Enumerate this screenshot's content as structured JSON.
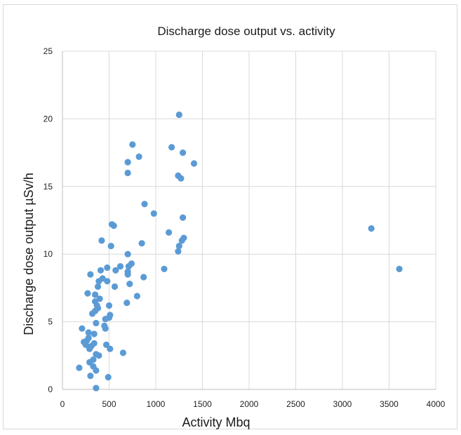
{
  "chart_data": {
    "type": "scatter",
    "title": "Discharge dose output vs. activity",
    "xlabel": "Activity Mbq",
    "ylabel": "Discharge dose output µSv/h",
    "xlim": [
      0,
      4000
    ],
    "ylim": [
      0,
      25
    ],
    "x_ticks": [
      "0",
      "500",
      "1000",
      "1500",
      "2000",
      "2500",
      "3000",
      "3500",
      "4000"
    ],
    "y_ticks": [
      "0",
      "5",
      "10",
      "15",
      "20",
      "25"
    ],
    "grid": true,
    "marker_color": "#5b9bd5",
    "series": [
      {
        "points": [
          [
            180,
            1.6
          ],
          [
            210,
            4.5
          ],
          [
            230,
            3.5
          ],
          [
            250,
            3.3
          ],
          [
            260,
            3.6
          ],
          [
            270,
            7.1
          ],
          [
            280,
            4.2
          ],
          [
            280,
            3.8
          ],
          [
            290,
            3.0
          ],
          [
            290,
            2.0
          ],
          [
            300,
            1.0
          ],
          [
            300,
            8.5
          ],
          [
            310,
            3.2
          ],
          [
            320,
            5.6
          ],
          [
            330,
            1.7
          ],
          [
            330,
            2.2
          ],
          [
            340,
            3.4
          ],
          [
            340,
            4.1
          ],
          [
            350,
            7.0
          ],
          [
            350,
            6.5
          ],
          [
            350,
            5.8
          ],
          [
            360,
            0.1
          ],
          [
            360,
            2.6
          ],
          [
            360,
            1.4
          ],
          [
            360,
            4.9
          ],
          [
            370,
            6.2
          ],
          [
            380,
            7.6
          ],
          [
            380,
            6.0
          ],
          [
            390,
            8.0
          ],
          [
            390,
            2.5
          ],
          [
            400,
            6.7
          ],
          [
            410,
            8.8
          ],
          [
            420,
            11.0
          ],
          [
            430,
            8.2
          ],
          [
            450,
            4.7
          ],
          [
            460,
            4.5
          ],
          [
            460,
            5.2
          ],
          [
            470,
            3.3
          ],
          [
            480,
            9.0
          ],
          [
            480,
            8.0
          ],
          [
            490,
            0.9
          ],
          [
            500,
            6.2
          ],
          [
            500,
            5.3
          ],
          [
            510,
            3.0
          ],
          [
            510,
            5.5
          ],
          [
            520,
            10.6
          ],
          [
            530,
            12.2
          ],
          [
            550,
            12.1
          ],
          [
            560,
            7.6
          ],
          [
            570,
            8.8
          ],
          [
            620,
            9.1
          ],
          [
            650,
            2.7
          ],
          [
            690,
            6.4
          ],
          [
            700,
            10.0
          ],
          [
            700,
            8.5
          ],
          [
            700,
            8.7
          ],
          [
            700,
            16.0
          ],
          [
            700,
            16.8
          ],
          [
            710,
            9.1
          ],
          [
            720,
            7.8
          ],
          [
            740,
            9.3
          ],
          [
            750,
            18.1
          ],
          [
            800,
            6.9
          ],
          [
            820,
            17.2
          ],
          [
            850,
            10.8
          ],
          [
            870,
            8.3
          ],
          [
            880,
            13.7
          ],
          [
            980,
            13.0
          ],
          [
            1090,
            8.9
          ],
          [
            1140,
            11.6
          ],
          [
            1170,
            17.9
          ],
          [
            1240,
            10.2
          ],
          [
            1240,
            15.8
          ],
          [
            1250,
            20.3
          ],
          [
            1250,
            10.6
          ],
          [
            1270,
            15.6
          ],
          [
            1280,
            11.0
          ],
          [
            1290,
            17.5
          ],
          [
            1290,
            12.7
          ],
          [
            1300,
            11.2
          ],
          [
            1410,
            16.7
          ],
          [
            3310,
            11.9
          ],
          [
            3610,
            8.9
          ]
        ]
      }
    ]
  }
}
